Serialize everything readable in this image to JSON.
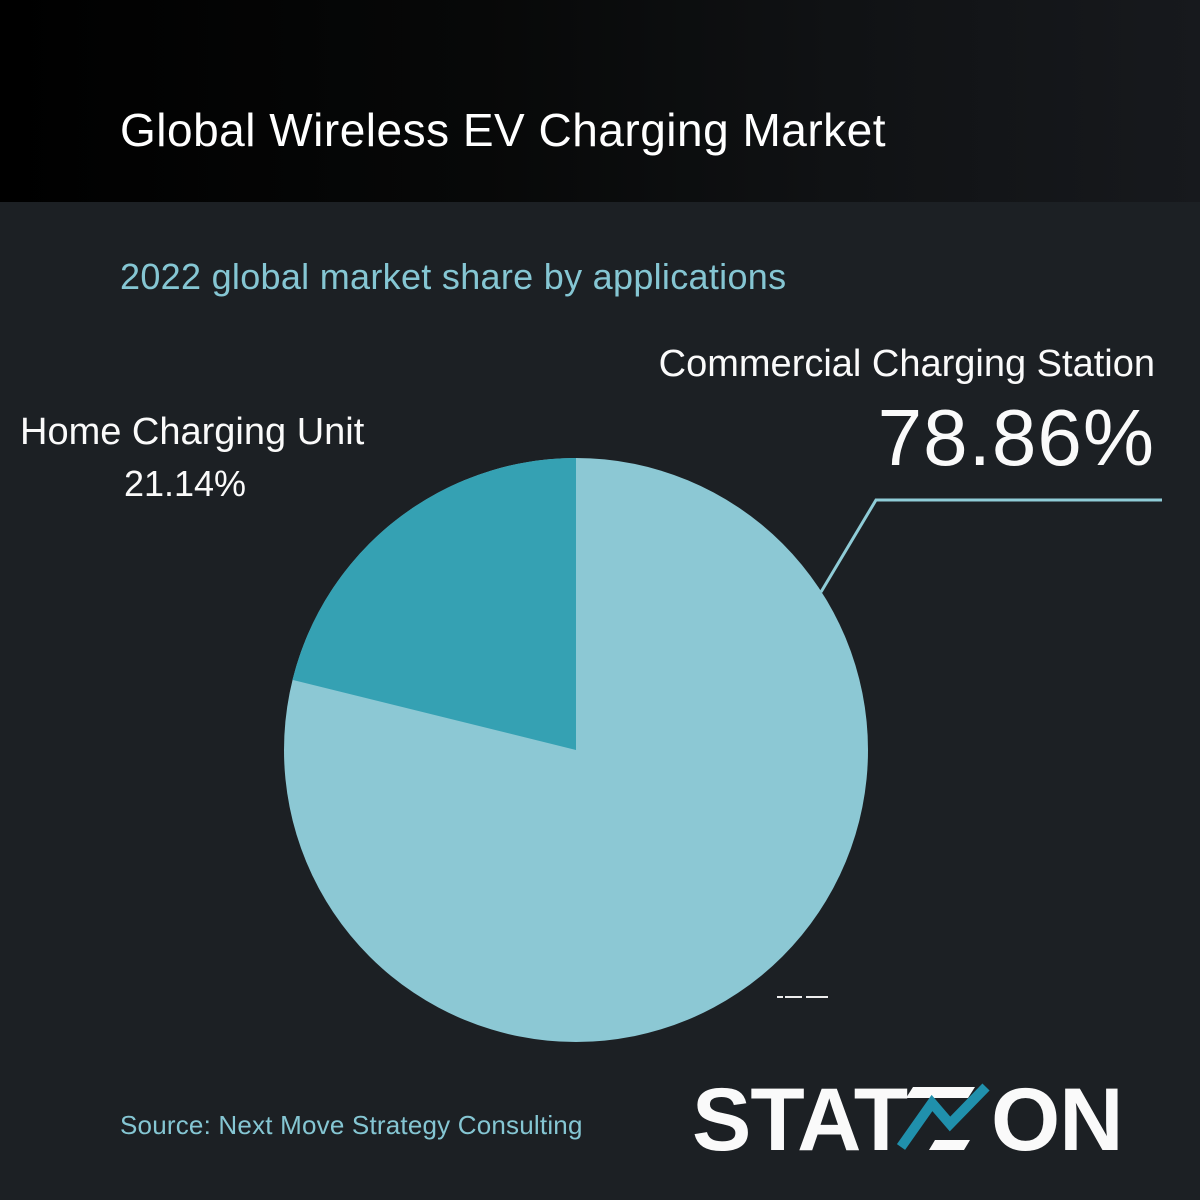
{
  "header": {
    "title": "Global Wireless EV Charging Market"
  },
  "subtitle": "2022 global market share by applications",
  "chart_data": {
    "type": "pie",
    "title": "2022 global market share by applications",
    "unit": "percent",
    "slices": [
      {
        "label": "Commercial Charging Station",
        "value": 78.86,
        "display": "78.86%",
        "color": "#8cc8d4"
      },
      {
        "label": "Home Charging Unit",
        "value": 21.14,
        "display": "21.14%",
        "color": "#35a1b3"
      }
    ],
    "start_angle": "12 o'clock",
    "minor_slice_direction": "counterclockwise",
    "legend": "none",
    "labels_position": "outside",
    "leader_line_target": "Commercial Charging Station"
  },
  "source": {
    "text": "Source: Next Move Strategy Consulting"
  },
  "logo": {
    "name": "Statzon",
    "text_left": "STAT",
    "text_right": "ON"
  },
  "colors": {
    "background": "#1c2024",
    "band_gradient_left": "#000000",
    "band_gradient_right": "#17191d",
    "accent_teal_text": "#85c6d3",
    "slice_major": "#8cc8d4",
    "slice_minor": "#35a1b3",
    "leader_line": "#8fccd7",
    "logo_teal": "#2090ac",
    "text_white": "#fafafa"
  }
}
